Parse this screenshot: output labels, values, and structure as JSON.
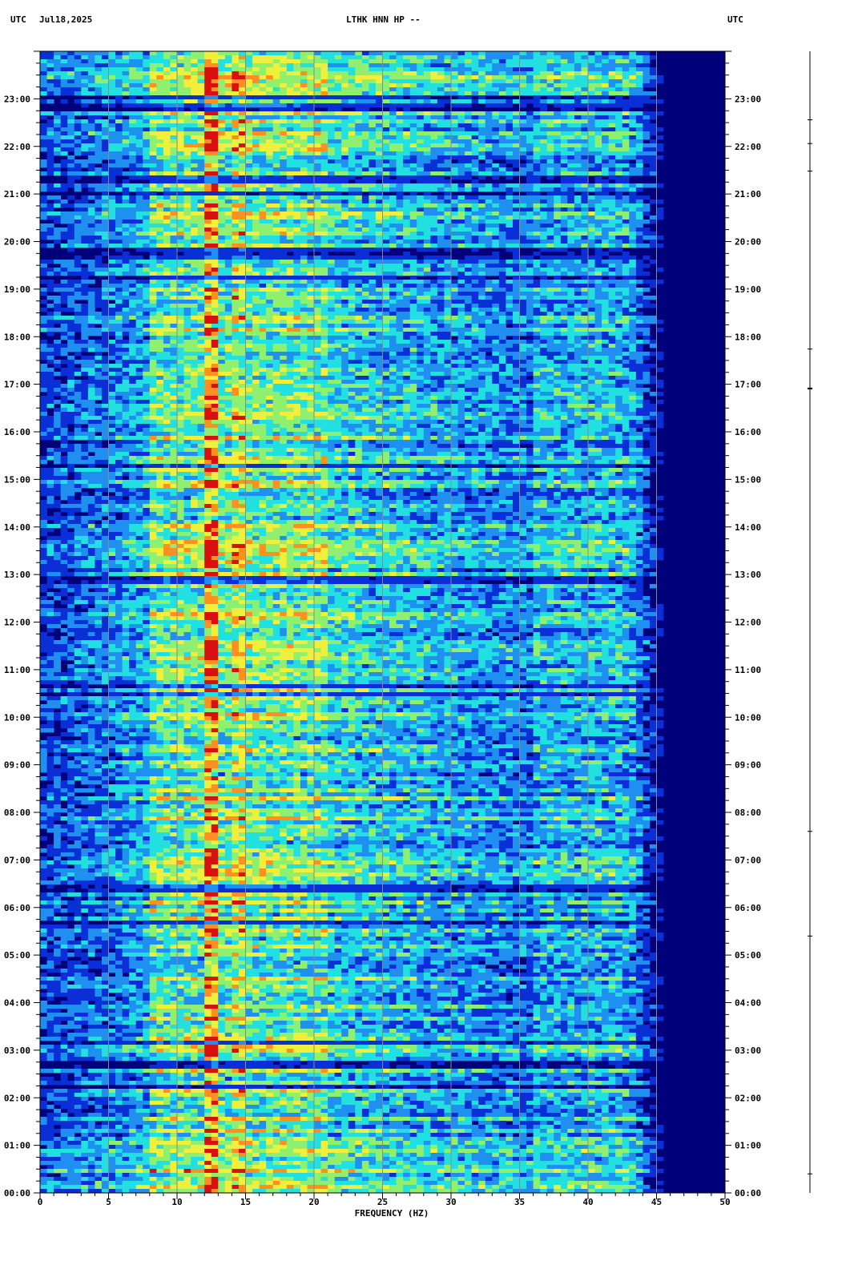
{
  "header": {
    "left_tz": "UTC",
    "date": "Jul18,2025",
    "station": "LTHK HNN HP --",
    "right_tz": "UTC"
  },
  "chart_data": {
    "type": "heatmap",
    "title": "LTHK HNN HP --",
    "xlabel": "FREQUENCY (HZ)",
    "ylabel": "",
    "xlim": [
      0,
      50
    ],
    "ylim_hours": [
      0,
      24
    ],
    "x_ticks": [
      "0",
      "5",
      "10",
      "15",
      "20",
      "25",
      "30",
      "35",
      "40",
      "45",
      "50"
    ],
    "y_ticks": [
      "00:00",
      "01:00",
      "02:00",
      "03:00",
      "04:00",
      "05:00",
      "06:00",
      "07:00",
      "08:00",
      "09:00",
      "10:00",
      "11:00",
      "12:00",
      "13:00",
      "14:00",
      "15:00",
      "16:00",
      "17:00",
      "18:00",
      "19:00",
      "20:00",
      "21:00",
      "22:00",
      "23:00"
    ],
    "grid_x": [
      5,
      10,
      15,
      20,
      25,
      30,
      35,
      40,
      45
    ],
    "colormap": [
      "#00007a",
      "#0a2fd6",
      "#1f8ff0",
      "#23e0e0",
      "#8ff070",
      "#f0ef3c",
      "#ff8f1f",
      "#d81010"
    ],
    "features": {
      "strong_line_hz": 12.5,
      "secondary_line_hz": 14.5,
      "high_frequency_cutoff_hz": 44,
      "dark_band_hours": [
        2.7,
        12.9,
        19.75,
        22.8
      ]
    }
  }
}
